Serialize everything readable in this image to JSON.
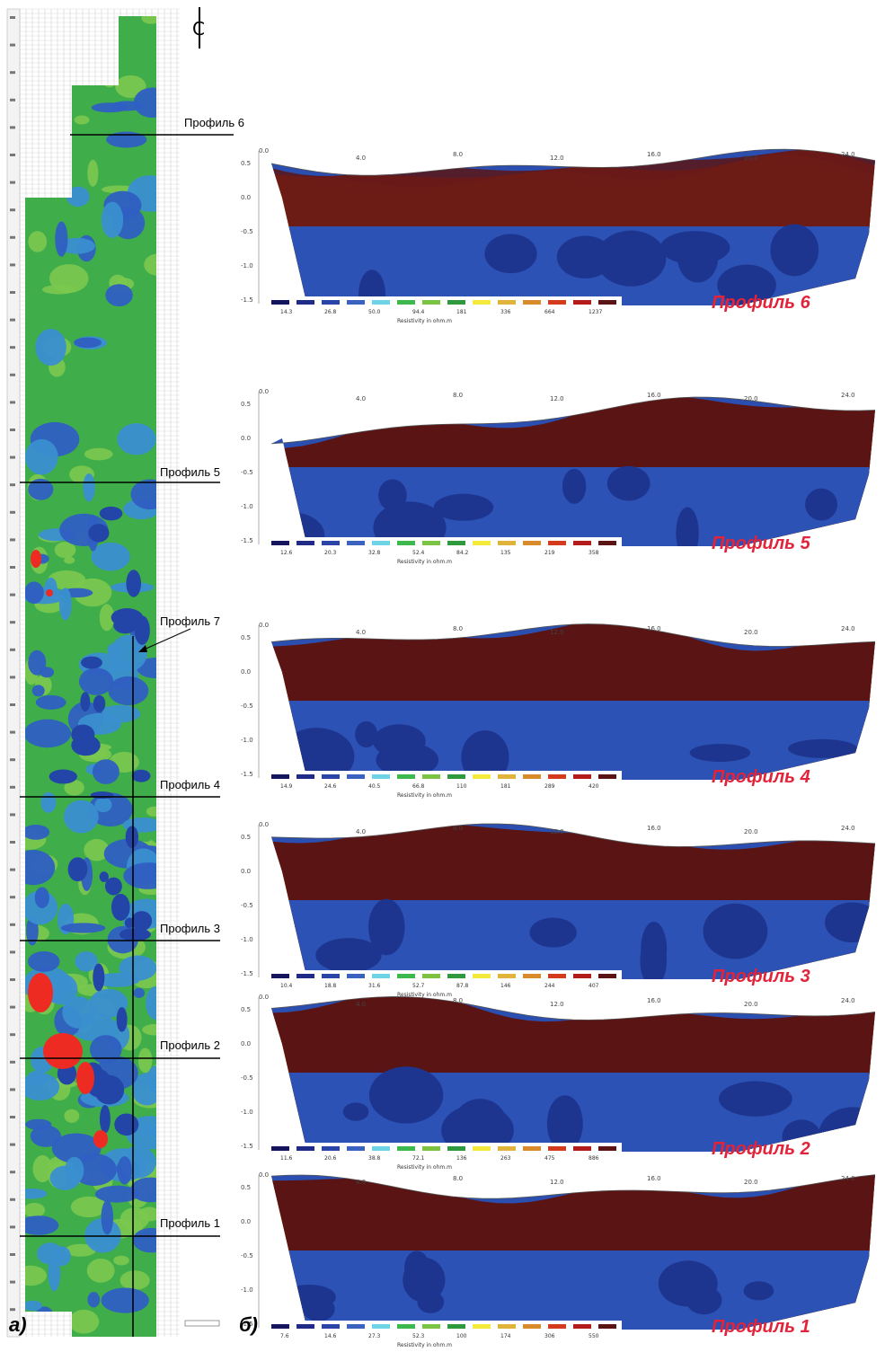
{
  "map": {
    "profile_labels": [
      "Профиль 6",
      "Профиль 5",
      "Профиль 7",
      "Профиль 4",
      "Профиль 3",
      "Профиль 2",
      "Профиль 1"
    ],
    "north_label": "С",
    "panel_letter": "а)"
  },
  "sections": {
    "panel_letter": "б)",
    "colorbar_caption": "Resistivity in ohm.m",
    "y_ticks": [
      "0.5",
      "0.0",
      "-0.5",
      "-1.0",
      "-1.5"
    ],
    "x_ticks": [
      "0.0",
      "4.0",
      "8.0",
      "12.0",
      "16.0",
      "20.0",
      "24.0"
    ],
    "profiles": [
      {
        "title": "Профиль 6",
        "cbar": [
          "14.3",
          "26.8",
          "50.0",
          "94.4",
          "181",
          "336",
          "664",
          "1237"
        ],
        "hot": 0.2
      },
      {
        "title": "Профиль 5",
        "cbar": [
          "12.6",
          "20.3",
          "32.8",
          "52.4",
          "84.2",
          "135",
          "219",
          "358"
        ],
        "hot": 0.95
      },
      {
        "title": "Профиль 4",
        "cbar": [
          "14.9",
          "24.6",
          "40.5",
          "66.8",
          "110",
          "181",
          "289",
          "420"
        ],
        "hot": 0.6
      },
      {
        "title": "Профиль 3",
        "cbar": [
          "10.4",
          "18.8",
          "31.6",
          "52.7",
          "87.8",
          "146",
          "244",
          "407"
        ],
        "hot": 0.75
      },
      {
        "title": "Профиль 2",
        "cbar": [
          "11.6",
          "20.6",
          "38.8",
          "72.1",
          "136",
          "263",
          "475",
          "886"
        ],
        "hot": 0.7
      },
      {
        "title": "Профиль 1",
        "cbar": [
          "7.6",
          "14.6",
          "27.3",
          "52.3",
          "100",
          "174",
          "306",
          "550"
        ],
        "hot": 0.55
      }
    ]
  },
  "colors": {
    "scale": [
      "#14155c",
      "#1f2b86",
      "#2a44a8",
      "#3a62be",
      "#6fd3e6",
      "#3cb84c",
      "#7bc443",
      "#2e9a3d",
      "#f4ea3c",
      "#e0b43a",
      "#d98a2a",
      "#d43a1c",
      "#b41c1c",
      "#5a1414"
    ]
  }
}
